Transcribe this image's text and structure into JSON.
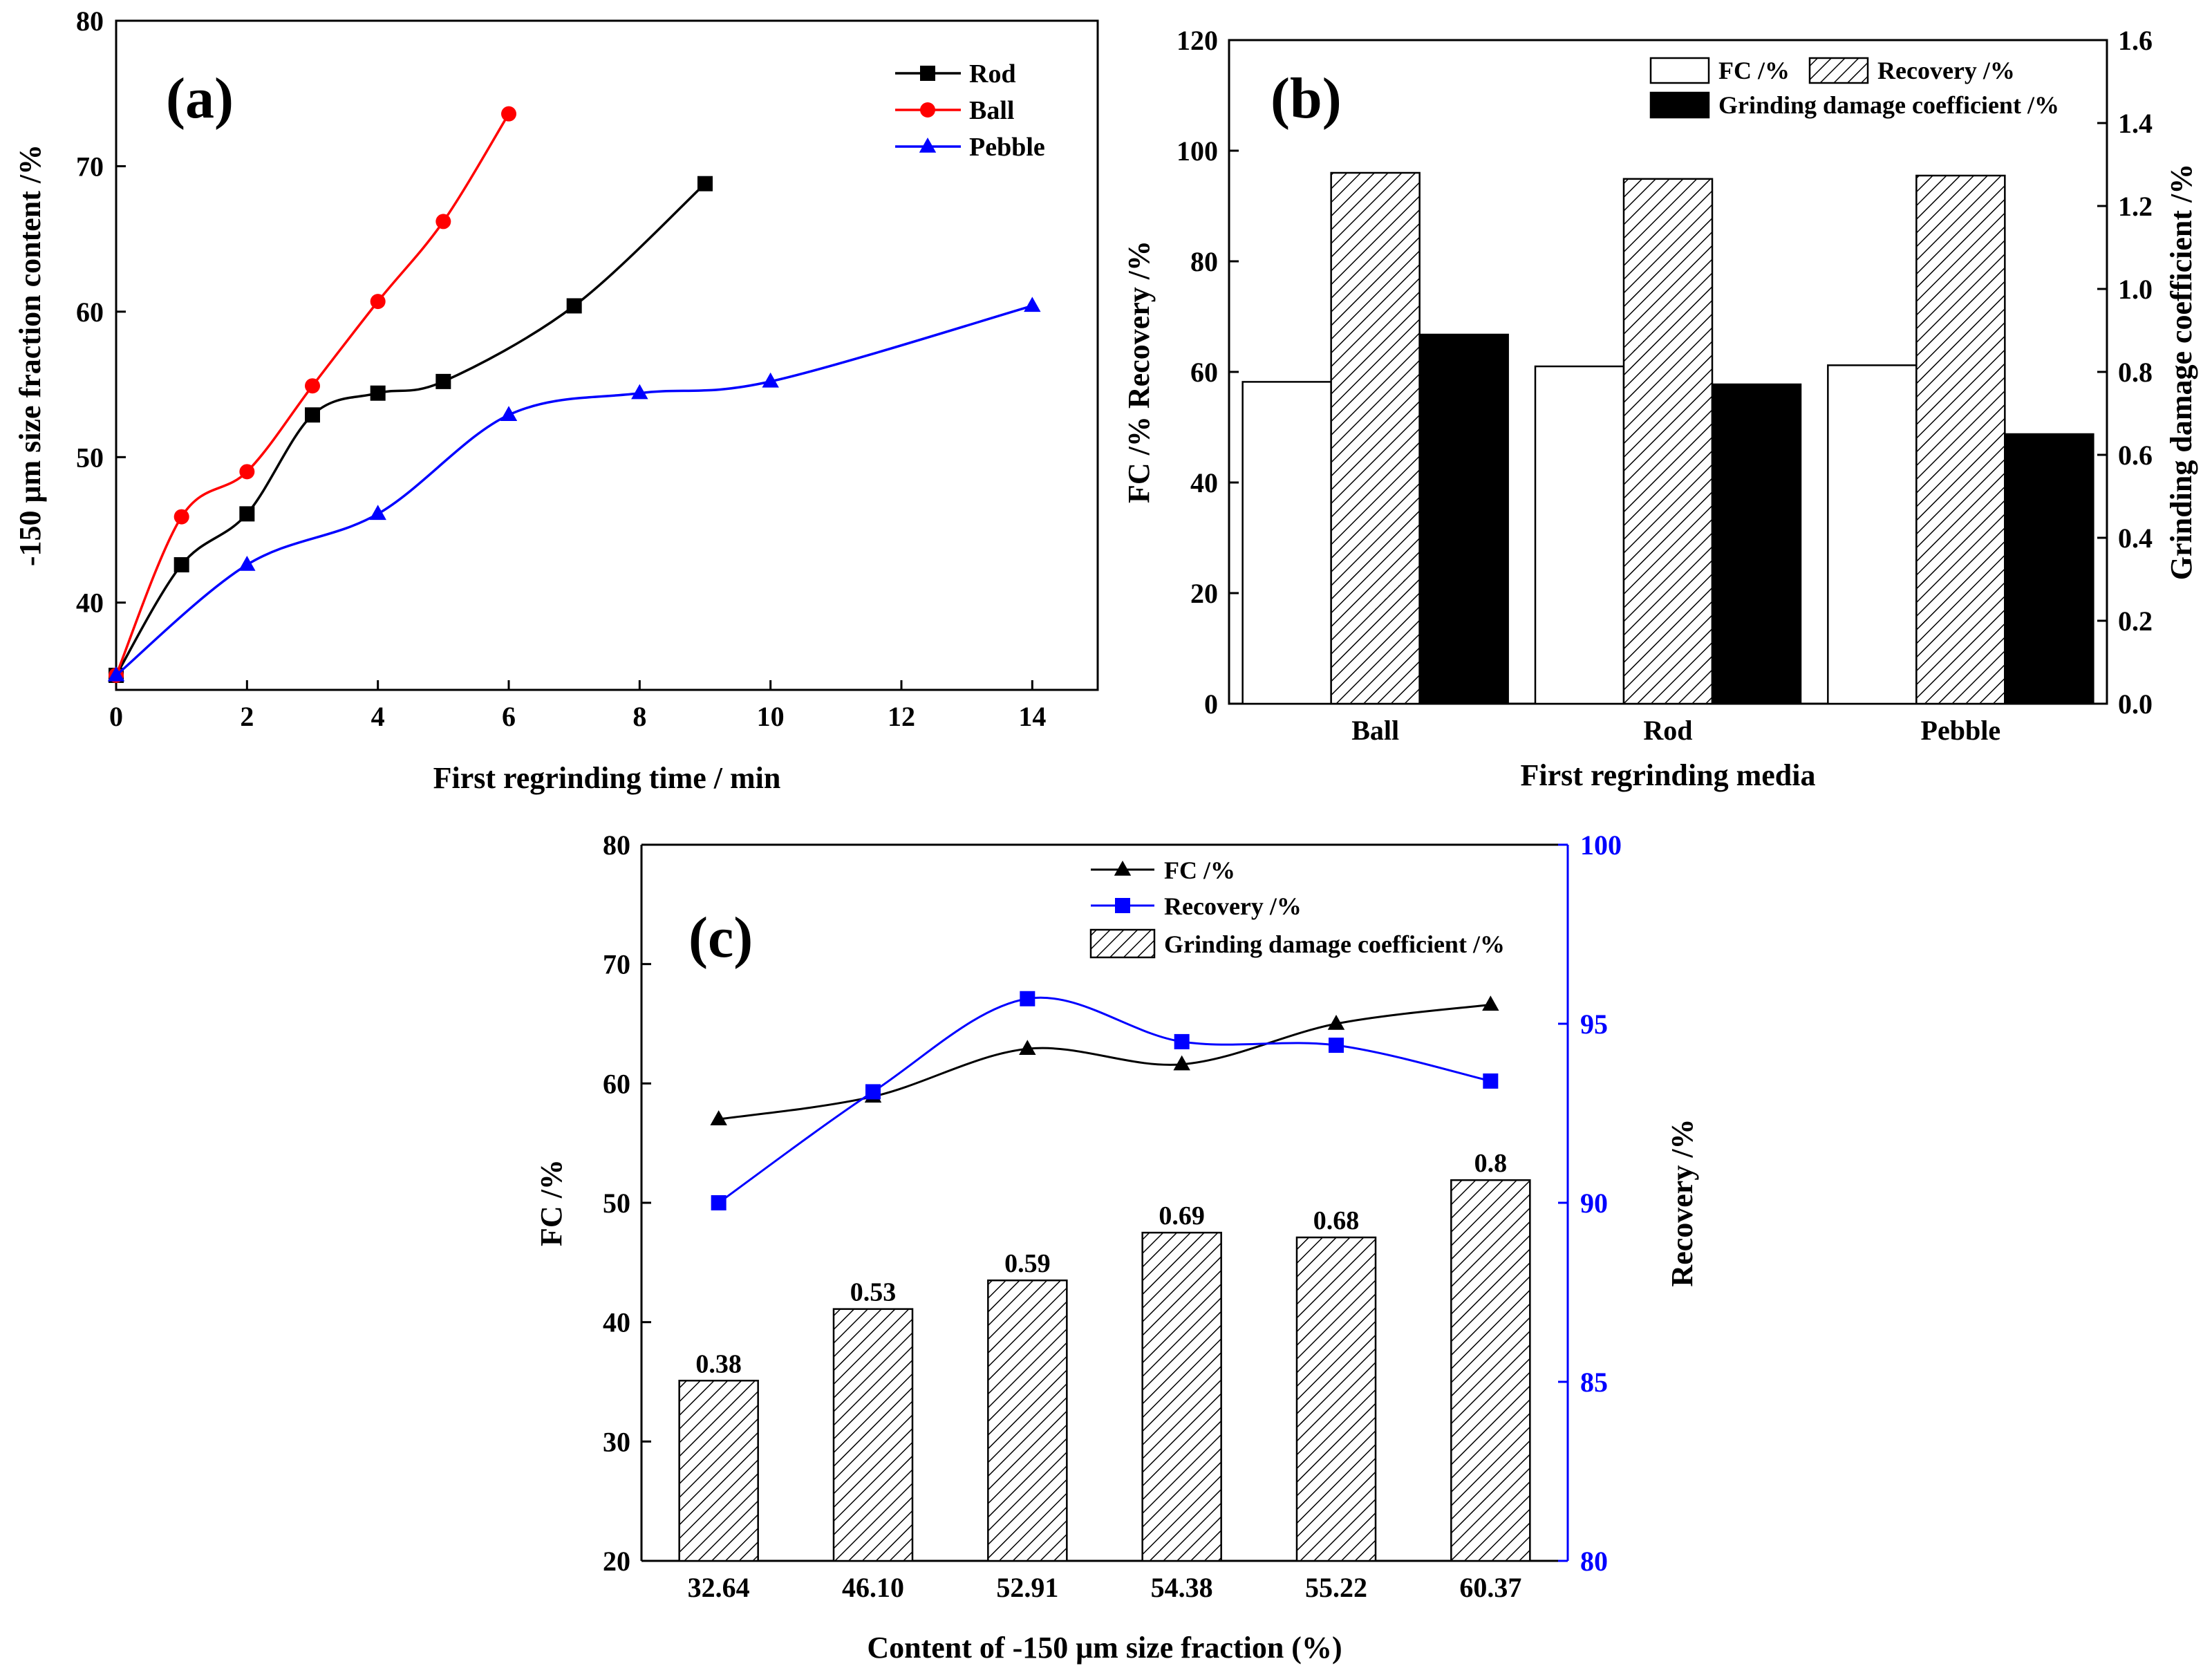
{
  "chart_data": [
    {
      "type": "line",
      "panel_label": "(a)",
      "xlabel": "First regrinding time / min",
      "ylabel": "-150 μm size fraction content /%",
      "xlim": [
        0,
        15
      ],
      "ylim": [
        34,
        80
      ],
      "xticks": [
        0,
        2,
        4,
        6,
        8,
        10,
        12,
        14
      ],
      "yticks": [
        40,
        50,
        60,
        70,
        80
      ],
      "legend_position": "top-right",
      "series": [
        {
          "name": "Rod",
          "color": "#000000",
          "marker": "square",
          "x": [
            0,
            1,
            2,
            3,
            4,
            5,
            7,
            9
          ],
          "y": [
            35.0,
            42.6,
            46.1,
            52.9,
            54.4,
            55.2,
            60.4,
            68.8
          ]
        },
        {
          "name": "Ball",
          "color": "#ff0000",
          "marker": "circle",
          "x": [
            0,
            1,
            2,
            3,
            4,
            5,
            6
          ],
          "y": [
            35.0,
            45.9,
            49.0,
            54.9,
            60.7,
            66.2,
            73.6
          ]
        },
        {
          "name": "Pebble",
          "color": "#0000ff",
          "marker": "triangle",
          "x": [
            0,
            2,
            4,
            6,
            8,
            10,
            14
          ],
          "y": [
            35.0,
            42.6,
            46.1,
            52.9,
            54.4,
            55.2,
            60.4
          ]
        }
      ]
    },
    {
      "type": "bar",
      "panel_label": "(b)",
      "xlabel": "First regrinding media",
      "ylabel_left": "FC /%   Recovery /%",
      "ylabel_right": "Grinding damage coefficient /%",
      "categories": [
        "Ball",
        "Rod",
        "Pebble"
      ],
      "ylim_left": [
        0,
        120
      ],
      "ylim_right": [
        0,
        1.6
      ],
      "yticks_left": [
        0,
        20,
        40,
        60,
        80,
        100,
        120
      ],
      "yticks_right": [
        "0.0",
        "0.2",
        "0.4",
        "0.6",
        "0.8",
        "1.0",
        "1.2",
        "1.4",
        "1.6"
      ],
      "legend_position": "top-right",
      "series": [
        {
          "name": "FC /%",
          "style": "white",
          "axis": "left",
          "values": [
            58.2,
            61.0,
            61.2
          ]
        },
        {
          "name": "Recovery /%",
          "style": "hatched",
          "axis": "left",
          "values": [
            96.0,
            94.9,
            95.5
          ]
        },
        {
          "name": "Grinding damage coefficient /%",
          "style": "black",
          "axis": "right",
          "values": [
            0.89,
            0.77,
            0.65
          ]
        }
      ]
    },
    {
      "type": "bar",
      "panel_label": "(c)",
      "xlabel": "Content of -150 μm size fraction (%)",
      "ylabel_left": "FC /%",
      "ylabel_right": "Recovery /%",
      "categories": [
        "32.64",
        "46.10",
        "52.91",
        "54.38",
        "55.22",
        "60.37"
      ],
      "ylim_left": [
        20,
        80
      ],
      "ylim_right": [
        80,
        100
      ],
      "yticks_left": [
        20,
        30,
        40,
        50,
        60,
        70,
        80
      ],
      "yticks_right": [
        80,
        85,
        90,
        95,
        100
      ],
      "right_axis_color": "#0000ff",
      "legend_position": "top-right",
      "bar_labels": [
        "0.38",
        "0.53",
        "0.59",
        "0.69",
        "0.68",
        "0.8"
      ],
      "series": [
        {
          "name": "FC /%",
          "type": "line",
          "axis": "left",
          "color": "#000000",
          "marker": "triangle",
          "values": [
            57.0,
            58.9,
            62.9,
            61.6,
            65.0,
            66.6
          ]
        },
        {
          "name": "Recovery /%",
          "type": "line",
          "axis": "right",
          "color": "#0000ff",
          "marker": "square",
          "values": [
            90.0,
            93.1,
            95.7,
            94.5,
            94.4,
            93.4
          ]
        },
        {
          "name": "Grinding damage coefficient /%",
          "type": "bar",
          "axis": "left",
          "style": "hatched",
          "values": [
            35.1,
            41.1,
            43.5,
            47.5,
            47.1,
            51.9
          ]
        }
      ]
    }
  ]
}
